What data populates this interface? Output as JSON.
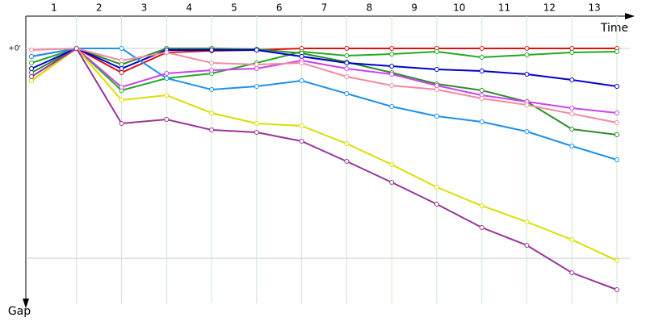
{
  "chart_data": {
    "type": "line",
    "xlabel": "Time",
    "ylabel": "Gap",
    "categories": [
      "1",
      "2",
      "3",
      "4",
      "5",
      "6",
      "7",
      "8",
      "9",
      "10",
      "11",
      "12",
      "13"
    ],
    "x": [
      0,
      1,
      2,
      3,
      4,
      5,
      6,
      7,
      8,
      9,
      10,
      11,
      12,
      13
    ],
    "xlim": [
      0,
      13
    ],
    "ylim": [
      0,
      316
    ],
    "yticks": [
      {
        "value": 0,
        "label": "+0'"
      }
    ],
    "series": [
      {
        "color": "#dd1111",
        "values": [
          10,
          0,
          30,
          5,
          3,
          2,
          0,
          0,
          0,
          0,
          0,
          0,
          0,
          0
        ]
      },
      {
        "color": "#22aa22",
        "values": [
          18,
          0,
          52,
          37,
          31,
          18,
          4,
          9,
          7,
          4,
          11,
          8,
          5,
          4
        ]
      },
      {
        "color": "#2e8b2e",
        "values": [
          30,
          0,
          20,
          0,
          0,
          1,
          6,
          17,
          30,
          44,
          52,
          66,
          100,
          107
        ]
      },
      {
        "color": "#0000cc",
        "values": [
          25,
          0,
          25,
          2,
          2,
          2,
          10,
          18,
          22,
          26,
          28,
          32,
          39,
          47
        ]
      },
      {
        "color": "#1e90ee",
        "values": [
          10,
          0,
          0,
          37,
          51,
          47,
          40,
          56,
          72,
          84,
          91,
          103,
          121,
          138
        ]
      },
      {
        "color": "#cc44ee",
        "values": [
          40,
          0,
          48,
          31,
          27,
          25,
          15,
          25,
          32,
          46,
          58,
          66,
          74,
          80
        ]
      },
      {
        "color": "#f08ca0",
        "values": [
          2,
          0,
          15,
          5,
          18,
          20,
          18,
          35,
          46,
          51,
          62,
          70,
          81,
          92
        ]
      },
      {
        "color": "#dddd00",
        "values": [
          40,
          0,
          64,
          58,
          80,
          93,
          96,
          118,
          144,
          172,
          195,
          215,
          237,
          263
        ]
      },
      {
        "color": "#993399",
        "values": [
          35,
          0,
          93,
          88,
          101,
          104,
          115,
          140,
          166,
          193,
          222,
          244,
          278,
          299
        ]
      }
    ]
  }
}
